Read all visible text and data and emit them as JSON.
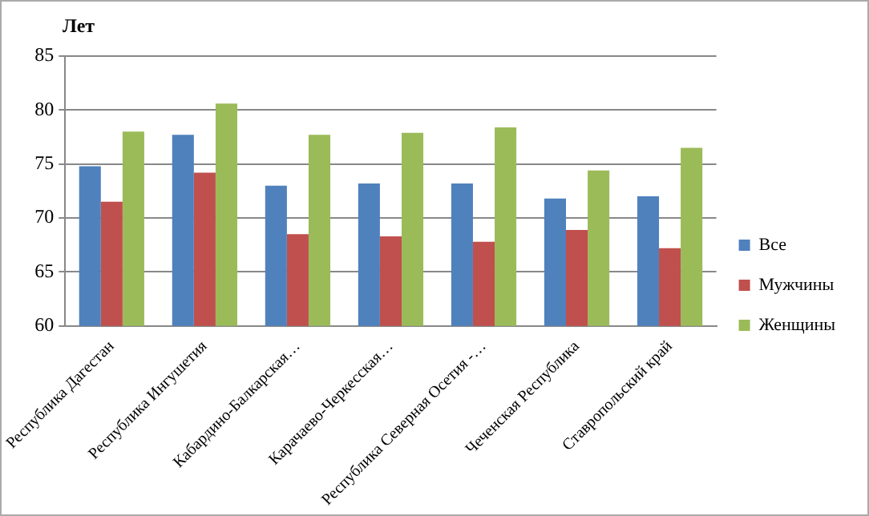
{
  "chart_data": {
    "type": "bar",
    "ylabel": "Лет",
    "categories": [
      "Республика Дагестан",
      "Республика Ингушетия",
      "Кабардино-Балкарская…",
      "Карачаево-Черкесская…",
      "Республика Северная Осетия -…",
      "Чеченская Республика",
      "Ставропольский край"
    ],
    "series": [
      {
        "name": "Все",
        "color": "#4f81bd",
        "values": [
          74.8,
          77.7,
          73.0,
          73.2,
          73.2,
          71.8,
          72.0
        ]
      },
      {
        "name": "Мужчины",
        "color": "#c0504d",
        "values": [
          71.5,
          74.2,
          68.5,
          68.3,
          67.8,
          68.9,
          67.2
        ]
      },
      {
        "name": "Женщины",
        "color": "#9bbb59",
        "values": [
          78.0,
          80.6,
          77.7,
          77.9,
          78.4,
          74.4,
          76.5
        ]
      }
    ],
    "ylim": [
      60,
      85
    ],
    "yticks": [
      60,
      65,
      70,
      75,
      80,
      85
    ],
    "grid": "y",
    "legend": "right"
  }
}
